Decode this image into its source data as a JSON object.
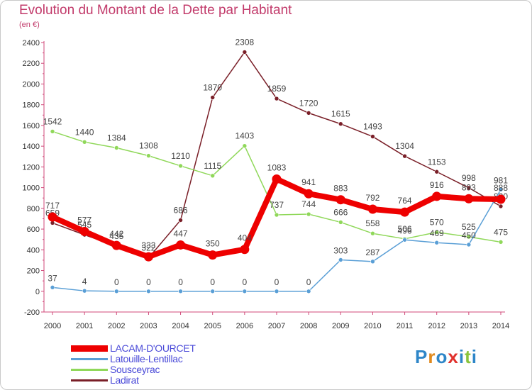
{
  "header": {
    "title": "Evolution du Montant de la Dette par Habitant",
    "subtitle": "(en €)"
  },
  "brand": {
    "letters": [
      "P",
      "r",
      "o",
      "x",
      "i",
      "t",
      "i"
    ],
    "colors": [
      "#2e86c8",
      "#e08a1e",
      "#2e86c8",
      "#e0312c",
      "#2e86c8",
      "#8ac43c",
      "#2e86c8"
    ]
  },
  "chart_data": {
    "type": "line",
    "x": [
      "2000",
      "2001",
      "2002",
      "2003",
      "2004",
      "2005",
      "2006",
      "2007",
      "2008",
      "2009",
      "2010",
      "2011",
      "2012",
      "2013",
      "2014"
    ],
    "ylim": [
      -200,
      2400
    ],
    "yticks": [
      "-200",
      "0",
      "200",
      "400",
      "600",
      "800",
      "1000",
      "1200",
      "1400",
      "1600",
      "1800",
      "2000",
      "2200",
      "2400"
    ],
    "grid": false,
    "legend_position": "bottom-left",
    "series": [
      {
        "name": "Ladirat",
        "color": "#7a1f28",
        "values": [
          659,
          545,
          435,
          322,
          686,
          1870,
          2308,
          1859,
          1720,
          1615,
          1493,
          1304,
          1153,
          998,
          820
        ],
        "labels": [
          "659",
          "545",
          "435",
          "322",
          "686",
          "1870",
          "2308",
          "1859",
          "1720",
          "1615",
          "1493",
          "1304",
          "1153",
          "998",
          "820"
        ]
      },
      {
        "name": "Sousceyrac",
        "color": "#90d85a",
        "values": [
          1542,
          1440,
          1384,
          1308,
          1210,
          1115,
          1403,
          737,
          744,
          666,
          558,
          506,
          570,
          525,
          475
        ],
        "labels": [
          "1542",
          "1440",
          "1384",
          "1308",
          "1210",
          "1115",
          "1403",
          "737",
          "744",
          "666",
          "558",
          "506",
          "570",
          "525",
          "475"
        ]
      },
      {
        "name": "Latouille-Lentillac",
        "color": "#5a9fd6",
        "values": [
          37,
          4,
          0,
          0,
          0,
          0,
          0,
          0,
          0,
          303,
          287,
          496,
          469,
          450,
          981
        ],
        "labels": [
          "37",
          "4",
          "0",
          "0",
          "0",
          "0",
          "0",
          "0",
          "0",
          "303",
          "287",
          "496",
          "469",
          "450",
          "981"
        ]
      },
      {
        "name": "LACAM-D'OURCET",
        "color": "#ee0000",
        "values": [
          717,
          577,
          442,
          333,
          447,
          350,
          404,
          1083,
          941,
          883,
          792,
          764,
          916,
          893,
          888
        ],
        "labels": [
          "717",
          "577",
          "442",
          "333",
          "447",
          "350",
          "404",
          "1083",
          "941",
          "883",
          "792",
          "764",
          "916",
          "893",
          "888"
        ]
      }
    ]
  }
}
